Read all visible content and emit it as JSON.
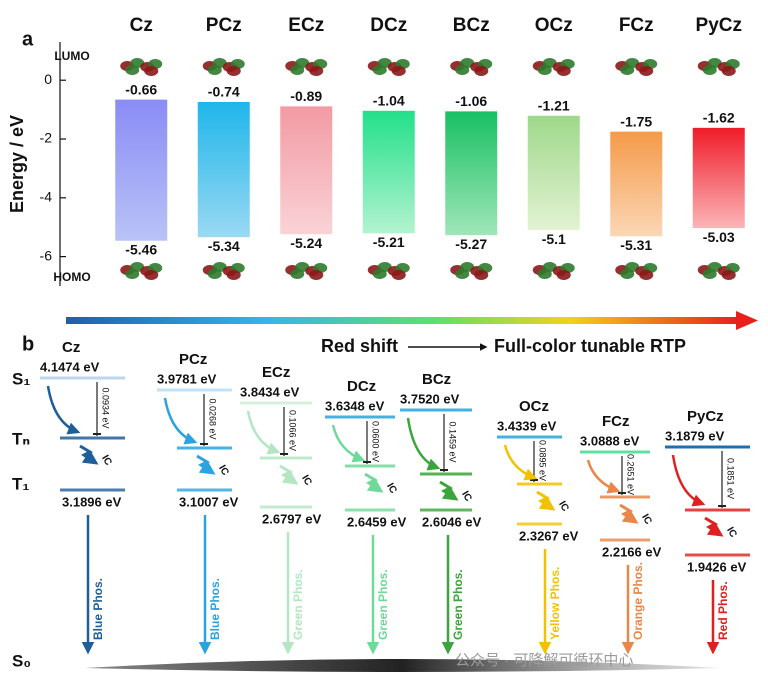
{
  "chart_data": {
    "type": "floating-bar",
    "panel": "a",
    "ylabel": "Energy / eV",
    "categories": [
      "Cz",
      "PCz",
      "ECz",
      "DCz",
      "BCz",
      "OCz",
      "FCz",
      "PyCz"
    ],
    "series": [
      {
        "name": "LUMO",
        "values": [
          -0.66,
          -0.74,
          -0.89,
          -1.04,
          -1.06,
          -1.21,
          -1.75,
          -1.62
        ]
      },
      {
        "name": "HOMO",
        "values": [
          -5.46,
          -5.34,
          -5.24,
          -5.21,
          -5.27,
          -5.1,
          -5.31,
          -5.03
        ]
      }
    ],
    "colors": [
      [
        "#8a8cf5",
        "#b9c3f7"
      ],
      [
        "#1fb6ea",
        "#9ad9f3"
      ],
      [
        "#f39aa4",
        "#f9d3d6"
      ],
      [
        "#22e08a",
        "#b3f3d0"
      ],
      [
        "#18c063",
        "#9fe6b8"
      ],
      [
        "#9ed88a",
        "#e3f3d3"
      ],
      [
        "#f59a4a",
        "#fbd7b5"
      ],
      [
        "#f01c2a",
        "#fbb5b8"
      ]
    ],
    "ylim": [
      -7,
      1.3
    ],
    "yticks": [
      0,
      -2,
      -4,
      -6
    ]
  },
  "diagram": {
    "panel": "b",
    "arrow_left": "Red shift",
    "arrow_right": "Full-color tunable RTP",
    "states": [
      "S₁",
      "Tₙ",
      "T₁",
      "S₀"
    ],
    "ic": "IC",
    "molecules": [
      {
        "name": "Cz",
        "s1": "4.1474 eV",
        "gap": "0.0934 eV",
        "t1": "3.1896 eV",
        "phos": "Blue Phos."
      },
      {
        "name": "PCz",
        "s1": "3.9781 eV",
        "gap": "0.0268 eV",
        "t1": "3.1007 eV",
        "phos": "Blue Phos."
      },
      {
        "name": "ECz",
        "s1": "3.8434 eV",
        "gap": "0.1066 eV",
        "t1": "2.6797 eV",
        "phos": "Green Phos."
      },
      {
        "name": "DCz",
        "s1": "3.6348 eV",
        "gap": "0.0600 eV",
        "t1": "2.6459 eV",
        "phos": "Green Phos."
      },
      {
        "name": "BCz",
        "s1": "3.7520 eV",
        "gap": "0.1459 eV",
        "t1": "2.6046 eV",
        "phos": "Green Phos."
      },
      {
        "name": "OCz",
        "s1": "3.4339 eV",
        "gap": "0.0895 eV",
        "t1": "2.3267 eV",
        "phos": "Yellow Phos."
      },
      {
        "name": "FCz",
        "s1": "3.0888 eV",
        "gap": "0.2651 eV",
        "t1": "2.2166 eV",
        "phos": "Orange Phos."
      },
      {
        "name": "PyCz",
        "s1": "3.1879 eV",
        "gap": "0.1851 eV",
        "t1": "1.9426 eV",
        "phos": "Red Phos."
      }
    ]
  },
  "watermark": "公众号 · 可降解可循环中心"
}
